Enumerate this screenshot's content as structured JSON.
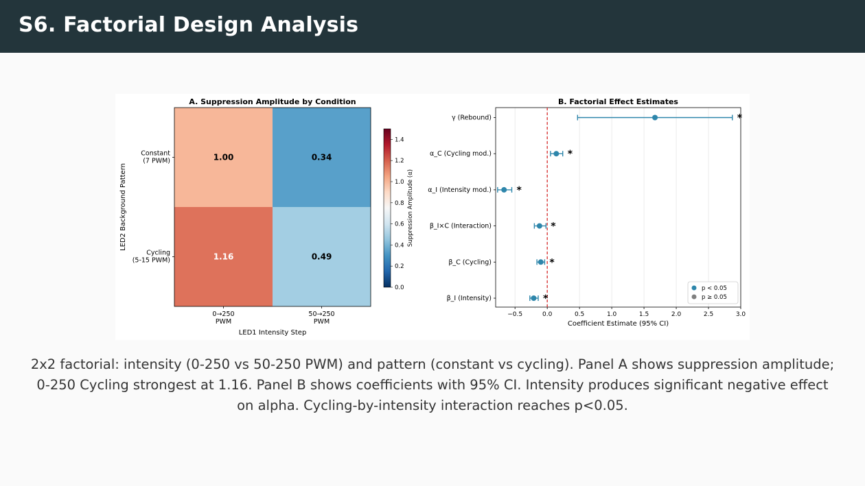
{
  "slide": {
    "title": "S6. Factorial Design Analysis",
    "caption": "2x2 factorial: intensity (0-250 vs 50-250 PWM) and pattern (constant vs cycling). Panel A shows suppression amplitude; 0-250 Cycling strongest at 1.16. Panel B shows coefficients with 95% CI. Intensity produces significant negative effect on alpha. Cycling-by-intensity interaction reaches p<0.05."
  },
  "colors": {
    "header_bg": "#23353b",
    "significant": "#2e86ab",
    "nonsignificant": "#808080",
    "zero_line": "#d62728"
  },
  "chart_data": [
    {
      "type": "heatmap",
      "title": "A. Suppression Amplitude by Condition",
      "xlabel": "LED1 Intensity Step",
      "ylabel": "LED2 Background Pattern",
      "x_categories": [
        "0→250 PWM",
        "50→250 PWM"
      ],
      "y_categories": [
        "Constant (7 PWM)",
        "Cycling (5-15 PWM)"
      ],
      "values": [
        [
          1.0,
          0.34
        ],
        [
          1.16,
          0.49
        ]
      ],
      "value_labels": [
        [
          "1.00",
          "0.34"
        ],
        [
          "1.16",
          "0.49"
        ]
      ],
      "colorbar": {
        "label": "Suppression Amplitude (α)",
        "range": [
          0.0,
          1.5
        ],
        "ticks": [
          "0.0",
          "0.2",
          "0.4",
          "0.6",
          "0.8",
          "1.0",
          "1.2",
          "1.4"
        ],
        "colormap": "RdBu_r"
      }
    },
    {
      "type": "scatter",
      "subtype": "forest",
      "title": "B. Factorial Effect Estimates",
      "xlabel": "Coefficient Estimate (95% CI)",
      "xlim": [
        -0.8,
        3.0
      ],
      "xticks": [
        "−0.5",
        "0.0",
        "0.5",
        "1.0",
        "1.5",
        "2.0",
        "2.5",
        "3.0"
      ],
      "items": [
        {
          "label": "γ (Rebound)",
          "estimate": 1.67,
          "ci": [
            0.47,
            2.87
          ],
          "significant": true,
          "marker": "*"
        },
        {
          "label": "α_C (Cycling mod.)",
          "estimate": 0.14,
          "ci": [
            0.05,
            0.24
          ],
          "significant": true,
          "marker": "*"
        },
        {
          "label": "α_I (Intensity mod.)",
          "estimate": -0.67,
          "ci": [
            -0.77,
            -0.55
          ],
          "significant": true,
          "marker": "*"
        },
        {
          "label": "β_I×C (Interaction)",
          "estimate": -0.12,
          "ci": [
            -0.2,
            -0.02
          ],
          "significant": true,
          "marker": "*"
        },
        {
          "label": "β_C (Cycling)",
          "estimate": -0.1,
          "ci": [
            -0.16,
            -0.04
          ],
          "significant": true,
          "marker": "*"
        },
        {
          "label": "β_I (Intensity)",
          "estimate": -0.21,
          "ci": [
            -0.27,
            -0.14
          ],
          "significant": true,
          "marker": "*"
        }
      ],
      "legend": {
        "position": "lower-right",
        "entries": [
          {
            "label": "p < 0.05"
          },
          {
            "label": "p ≥ 0.05"
          }
        ]
      }
    }
  ]
}
